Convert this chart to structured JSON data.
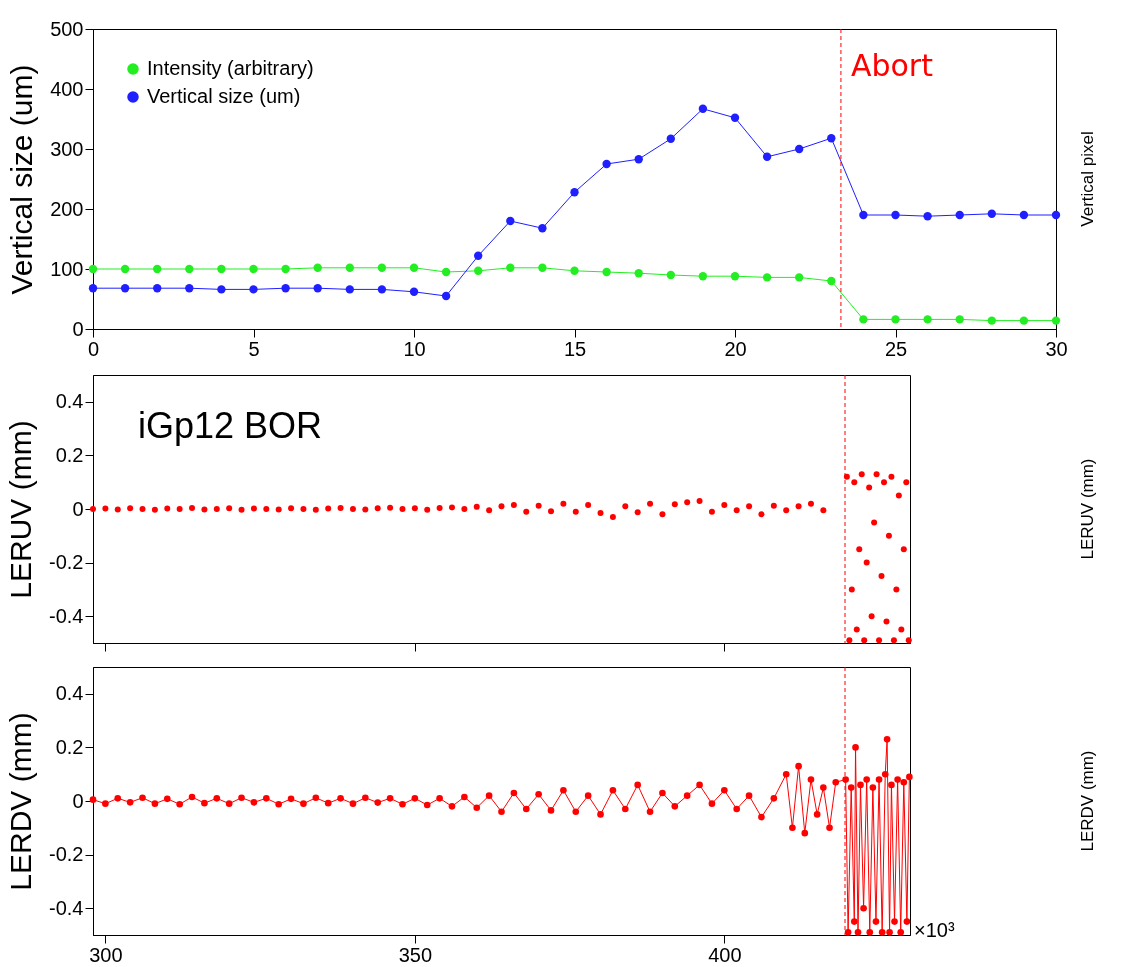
{
  "chart_data": [
    {
      "type": "line",
      "ylabel": "Vertical size (um)",
      "y2label": "Vertical pixel",
      "x": [
        0,
        1,
        2,
        3,
        4,
        5,
        6,
        7,
        8,
        9,
        10,
        11,
        12,
        13,
        14,
        15,
        16,
        17,
        18,
        19,
        20,
        21,
        22,
        23,
        24,
        25,
        26,
        27,
        28,
        29,
        30
      ],
      "xlim": [
        0,
        30
      ],
      "xticks": [
        0,
        5,
        10,
        15,
        20,
        25,
        30
      ],
      "ylim": [
        0,
        500
      ],
      "yticks": [
        0,
        100,
        200,
        300,
        400,
        500
      ],
      "legend": "top left",
      "marker": "circle",
      "grid": false,
      "series": [
        {
          "name": "Intensity (arbitrary)",
          "color": "#22ee22",
          "values": [
            100,
            100,
            100,
            100,
            100,
            100,
            100,
            102,
            102,
            102,
            102,
            95,
            97,
            102,
            102,
            97,
            95,
            93,
            90,
            88,
            88,
            86,
            86,
            80,
            16,
            16,
            16,
            16,
            14,
            14,
            14
          ]
        },
        {
          "name": "Vertical size (um)",
          "color": "#1f1fff",
          "values": [
            68,
            68,
            68,
            68,
            66,
            66,
            68,
            68,
            66,
            66,
            62,
            55,
            122,
            180,
            168,
            228,
            275,
            283,
            317,
            367,
            352,
            287,
            300,
            318,
            190,
            190,
            188,
            190,
            192,
            190,
            190
          ]
        }
      ],
      "ref_lines": [
        {
          "axis": "x",
          "value": 23.3,
          "label": "Abort",
          "color": "#ff0000",
          "line_style": "dashed"
        }
      ]
    },
    {
      "type": "scatter",
      "ylabel": "LERUV (mm)",
      "y2label": "LERUV (mm)",
      "xlim": [
        298,
        430
      ],
      "xticks": [
        300,
        350,
        400
      ],
      "ylim": [
        -0.5,
        0.5
      ],
      "yticks": [
        -0.4,
        -0.2,
        0,
        0.2,
        0.4
      ],
      "tick_labels": "y",
      "marker": "circle",
      "grid": false,
      "annotations": [
        "iGp12 BOR"
      ],
      "x": [
        298,
        300,
        302,
        304,
        306,
        308,
        310,
        312,
        314,
        316,
        318,
        320,
        322,
        324,
        326,
        328,
        330,
        332,
        334,
        336,
        338,
        340,
        342,
        344,
        346,
        348,
        350,
        352,
        354,
        356,
        358,
        360,
        362,
        364,
        366,
        368,
        370,
        372,
        374,
        376,
        378,
        380,
        382,
        384,
        386,
        388,
        390,
        392,
        394,
        396,
        398,
        400,
        402,
        404,
        406,
        408,
        410,
        412,
        414,
        416,
        419.8,
        420.2,
        420.6,
        421,
        421.4,
        421.8,
        422.2,
        422.6,
        423,
        423.4,
        423.8,
        424.2,
        424.6,
        425,
        425.4,
        425.8,
        426.2,
        426.6,
        427,
        427.4,
        427.8,
        428.2,
        428.6,
        429,
        429.4,
        429.8
      ],
      "series": [
        {
          "color": "#ff0000",
          "values": [
            0,
            0.002,
            -0.002,
            0.003,
            0,
            -0.003,
            0.002,
            0,
            0.004,
            -0.002,
            0,
            0.003,
            -0.003,
            0.002,
            0,
            -0.002,
            0.003,
            0,
            -0.003,
            0.002,
            0.004,
            0,
            -0.002,
            0.003,
            0.005,
            0,
            0.003,
            -0.003,
            0.004,
            0.006,
            0,
            0.008,
            -0.005,
            0.01,
            0.015,
            -0.01,
            0.012,
            -0.008,
            0.02,
            -0.01,
            0.015,
            -0.015,
            -0.03,
            0.01,
            -0.012,
            0.02,
            -0.02,
            0.018,
            0.025,
            0.03,
            -0.01,
            0.015,
            -0.005,
            0.01,
            -0.02,
            0.012,
            -0.005,
            0.01,
            0.02,
            -0.005,
            0.12,
            -0.49,
            -0.3,
            0.1,
            -0.45,
            -0.15,
            0.13,
            -0.49,
            -0.2,
            0.08,
            -0.4,
            -0.05,
            0.13,
            -0.49,
            -0.25,
            0.1,
            -0.42,
            -0.1,
            0.12,
            -0.49,
            -0.3,
            0.05,
            -0.45,
            -0.15,
            0.1,
            -0.49
          ]
        }
      ],
      "ref_lines": [
        {
          "axis": "x",
          "value": 419.5,
          "color": "#ff0000",
          "line_style": "dashed"
        }
      ]
    },
    {
      "type": "line",
      "ylabel": "LERDV (mm)",
      "y2label": "LERDV (mm)",
      "xlim": [
        298,
        430
      ],
      "xticks": [
        300,
        350,
        400
      ],
      "ylim": [
        -0.5,
        0.5
      ],
      "yticks": [
        -0.4,
        -0.2,
        0,
        0.2,
        0.4
      ],
      "marker": "circle",
      "grid": false,
      "annotations": [
        "×10³"
      ],
      "x": [
        298,
        300,
        302,
        304,
        306,
        308,
        310,
        312,
        314,
        316,
        318,
        320,
        322,
        324,
        326,
        328,
        330,
        332,
        334,
        336,
        338,
        340,
        342,
        344,
        346,
        348,
        350,
        352,
        354,
        356,
        358,
        360,
        362,
        364,
        366,
        368,
        370,
        372,
        374,
        376,
        378,
        380,
        382,
        384,
        386,
        388,
        390,
        392,
        394,
        396,
        398,
        400,
        402,
        404,
        406,
        408,
        410,
        411,
        412,
        413,
        414,
        415,
        416,
        417,
        418,
        419.6,
        420,
        420.5,
        421,
        421.2,
        421.6,
        422,
        422.5,
        423,
        423.5,
        424,
        424.5,
        425,
        425.5,
        426,
        426.3,
        426.7,
        427,
        427.5,
        428,
        428.5,
        429,
        429.5,
        429.9
      ],
      "series": [
        {
          "color": "#ff0000",
          "values": [
            0.005,
            -0.01,
            0.01,
            -0.005,
            0.012,
            -0.01,
            0.008,
            -0.012,
            0.015,
            -0.008,
            0.01,
            -0.01,
            0.012,
            -0.005,
            0.01,
            -0.012,
            0.008,
            -0.01,
            0.012,
            -0.008,
            0.01,
            -0.01,
            0.012,
            -0.006,
            0.01,
            -0.012,
            0.01,
            -0.015,
            0.01,
            -0.02,
            0.015,
            -0.025,
            0.02,
            -0.04,
            0.03,
            -0.03,
            0.025,
            -0.035,
            0.04,
            -0.04,
            0.02,
            -0.05,
            0.04,
            -0.03,
            0.06,
            -0.04,
            0.03,
            -0.02,
            0.02,
            0.06,
            -0.01,
            0.04,
            -0.03,
            0.02,
            -0.06,
            0.01,
            0.1,
            -0.1,
            0.13,
            -0.12,
            0.08,
            -0.05,
            0.05,
            -0.1,
            0.07,
            0.08,
            -0.49,
            0.05,
            -0.45,
            0.2,
            -0.49,
            0.06,
            -0.4,
            0.08,
            -0.49,
            0.05,
            -0.45,
            0.08,
            -0.49,
            0.1,
            0.23,
            -0.49,
            0.06,
            -0.45,
            0.08,
            -0.49,
            0.07,
            -0.45,
            0.09
          ]
        }
      ],
      "ref_lines": [
        {
          "axis": "x",
          "value": 419.5,
          "color": "#ff0000",
          "line_style": "dashed"
        }
      ]
    }
  ]
}
